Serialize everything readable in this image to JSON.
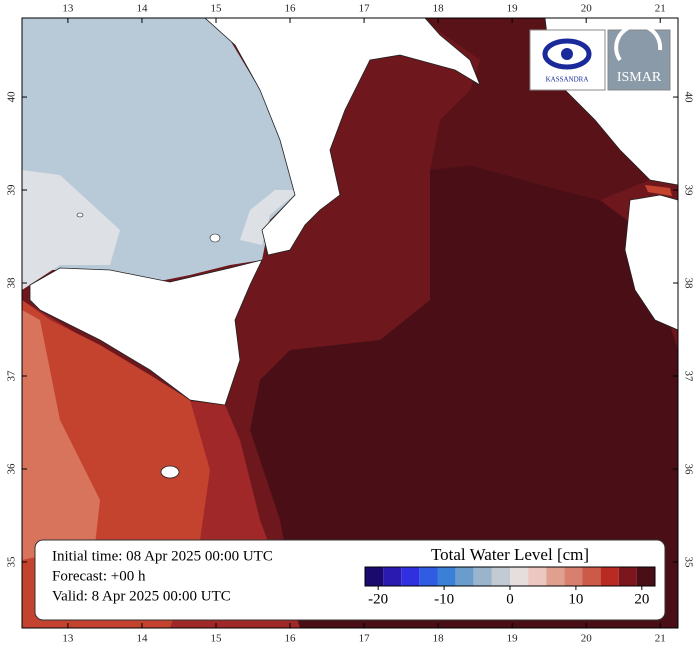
{
  "map": {
    "lonlim": [
      12.38,
      21.24
    ],
    "latlim": [
      34.29,
      40.85
    ],
    "lon_ticks": [
      13,
      14,
      15,
      16,
      17,
      18,
      19,
      20,
      21
    ],
    "lat_ticks": [
      35,
      36,
      37,
      38,
      39,
      40
    ]
  },
  "info": {
    "initial": "Initial time: 08 Apr 2025 00:00 UTC",
    "forecast": "Forecast: +00 h",
    "valid": "Valid:  8 Apr 2025 00:00 UTC"
  },
  "colorbar": {
    "title": "Total Water Level [cm]",
    "lim": [
      -22,
      22
    ],
    "ticks": [
      -20,
      -10,
      0,
      10,
      20
    ],
    "colors": [
      "#1a0a6e",
      "#2a1ab0",
      "#3030e0",
      "#2f5ce0",
      "#3a80d6",
      "#6a9ccc",
      "#9ab4cc",
      "#c2cad4",
      "#e6dedc",
      "#ecc6c0",
      "#e0a090",
      "#d88070",
      "#cc5a48",
      "#b82a22",
      "#7a161c",
      "#4a0f16"
    ]
  },
  "logos": {
    "left": "KASSANDRA",
    "right": "ISMAR"
  }
}
